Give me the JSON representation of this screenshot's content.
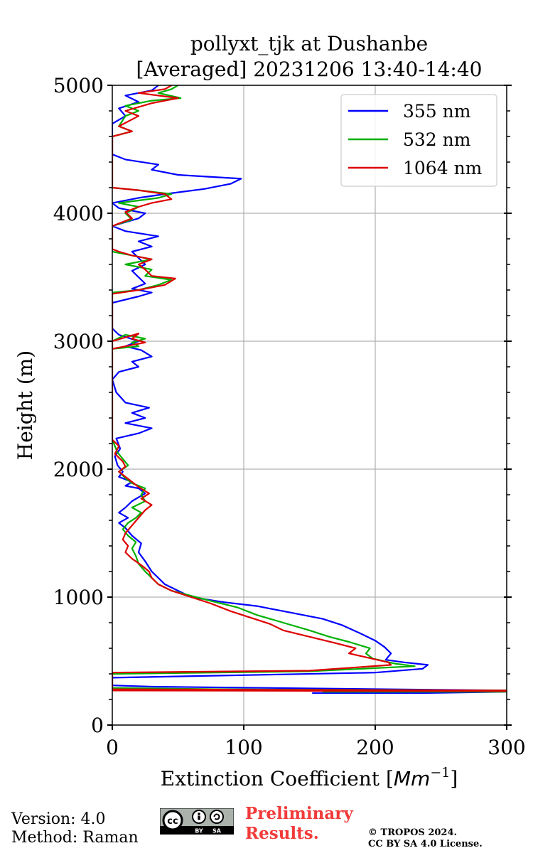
{
  "chart_data": {
    "type": "line",
    "title_line1": "pollyxt_tjk at Dushanbe",
    "title_line2": "[Averaged] 20231206 13:40-14:40",
    "xlabel": "Extinction Coefficient [",
    "xlabel_unit": "Mm",
    "xlabel_exp": "−1",
    "xlabel_end": "]",
    "ylabel": "Height (m)",
    "xlim": [
      0,
      300
    ],
    "ylim": [
      0,
      5000
    ],
    "xticks": [
      0,
      100,
      200,
      300
    ],
    "xtick_labels": [
      "0",
      "100",
      "200",
      "300"
    ],
    "yticks": [
      0,
      1000,
      2000,
      3000,
      4000,
      5000
    ],
    "ytick_labels": [
      "0",
      "1000",
      "2000",
      "3000",
      "4000",
      "5000"
    ],
    "grid": true,
    "legend_position": "top-right",
    "series": [
      {
        "name": "355 nm",
        "color": "#0000ff",
        "points": [
          [
            152,
            250
          ],
          [
            235,
            250
          ],
          [
            300,
            260
          ],
          [
            300,
            270
          ],
          [
            120,
            290
          ],
          [
            30,
            300
          ],
          [
            0,
            310
          ],
          [
            0,
            370
          ],
          [
            100,
            390
          ],
          [
            200,
            410
          ],
          [
            236,
            440
          ],
          [
            240,
            470
          ],
          [
            222,
            490
          ],
          [
            208,
            510
          ],
          [
            212,
            560
          ],
          [
            207,
            610
          ],
          [
            200,
            660
          ],
          [
            190,
            710
          ],
          [
            175,
            780
          ],
          [
            160,
            830
          ],
          [
            135,
            880
          ],
          [
            110,
            930
          ],
          [
            85,
            960
          ],
          [
            60,
            1000
          ],
          [
            50,
            1050
          ],
          [
            40,
            1100
          ],
          [
            35,
            1150
          ],
          [
            30,
            1200
          ],
          [
            25,
            1280
          ],
          [
            20,
            1350
          ],
          [
            22,
            1420
          ],
          [
            15,
            1480
          ],
          [
            10,
            1540
          ],
          [
            5,
            1580
          ],
          [
            12,
            1620
          ],
          [
            5,
            1660
          ],
          [
            10,
            1700
          ],
          [
            15,
            1750
          ],
          [
            20,
            1780
          ],
          [
            25,
            1810
          ],
          [
            20,
            1850
          ],
          [
            10,
            1870
          ],
          [
            15,
            1900
          ],
          [
            5,
            1940
          ],
          [
            8,
            1980
          ],
          [
            4,
            2030
          ],
          [
            2,
            2100
          ],
          [
            6,
            2160
          ],
          [
            3,
            2240
          ],
          [
            20,
            2280
          ],
          [
            30,
            2320
          ],
          [
            10,
            2360
          ],
          [
            25,
            2400
          ],
          [
            15,
            2440
          ],
          [
            28,
            2480
          ],
          [
            10,
            2520
          ],
          [
            3,
            2600
          ],
          [
            0,
            2700
          ],
          [
            5,
            2760
          ],
          [
            20,
            2800
          ],
          [
            15,
            2840
          ],
          [
            30,
            2880
          ],
          [
            22,
            2930
          ],
          [
            10,
            2960
          ],
          [
            20,
            3000
          ],
          [
            5,
            3050
          ],
          [
            0,
            3100
          ],
          [
            0,
            3300
          ],
          [
            20,
            3350
          ],
          [
            30,
            3380
          ],
          [
            15,
            3410
          ],
          [
            25,
            3450
          ],
          [
            20,
            3500
          ],
          [
            15,
            3550
          ],
          [
            25,
            3600
          ],
          [
            20,
            3650
          ],
          [
            15,
            3700
          ],
          [
            30,
            3740
          ],
          [
            20,
            3780
          ],
          [
            35,
            3820
          ],
          [
            10,
            3860
          ],
          [
            0,
            3900
          ],
          [
            20,
            3960
          ],
          [
            25,
            4000
          ],
          [
            5,
            4040
          ],
          [
            0,
            4080
          ],
          [
            20,
            4120
          ],
          [
            40,
            4150
          ],
          [
            70,
            4190
          ],
          [
            90,
            4230
          ],
          [
            98,
            4270
          ],
          [
            50,
            4300
          ],
          [
            30,
            4340
          ],
          [
            35,
            4380
          ],
          [
            10,
            4420
          ],
          [
            0,
            4460
          ],
          [
            0,
            4700
          ],
          [
            10,
            4760
          ],
          [
            5,
            4820
          ],
          [
            20,
            4870
          ],
          [
            10,
            4920
          ],
          [
            30,
            4960
          ],
          [
            35,
            5000
          ]
        ]
      },
      {
        "name": "532 nm",
        "color": "#00b000",
        "points": [
          [
            160,
            260
          ],
          [
            300,
            260
          ],
          [
            300,
            270
          ],
          [
            80,
            280
          ],
          [
            0,
            290
          ],
          [
            0,
            400
          ],
          [
            150,
            420
          ],
          [
            230,
            460
          ],
          [
            215,
            480
          ],
          [
            198,
            520
          ],
          [
            193,
            560
          ],
          [
            196,
            600
          ],
          [
            180,
            650
          ],
          [
            165,
            690
          ],
          [
            150,
            740
          ],
          [
            130,
            800
          ],
          [
            110,
            860
          ],
          [
            95,
            920
          ],
          [
            75,
            970
          ],
          [
            60,
            1010
          ],
          [
            45,
            1050
          ],
          [
            35,
            1100
          ],
          [
            30,
            1150
          ],
          [
            25,
            1200
          ],
          [
            20,
            1260
          ],
          [
            18,
            1320
          ],
          [
            15,
            1380
          ],
          [
            18,
            1430
          ],
          [
            12,
            1480
          ],
          [
            8,
            1530
          ],
          [
            12,
            1580
          ],
          [
            18,
            1620
          ],
          [
            22,
            1660
          ],
          [
            15,
            1700
          ],
          [
            25,
            1750
          ],
          [
            22,
            1800
          ],
          [
            25,
            1850
          ],
          [
            15,
            1890
          ],
          [
            10,
            1930
          ],
          [
            5,
            1980
          ],
          [
            12,
            2030
          ],
          [
            8,
            2080
          ],
          [
            4,
            2130
          ],
          [
            2,
            2180
          ],
          [
            0,
            2230
          ],
          [
            0,
            3000
          ],
          [
            10,
            3050
          ],
          [
            25,
            3020
          ],
          [
            15,
            2990
          ],
          [
            20,
            2960
          ],
          [
            0,
            2940
          ],
          [
            0,
            3380
          ],
          [
            20,
            3400
          ],
          [
            35,
            3440
          ],
          [
            45,
            3480
          ],
          [
            25,
            3510
          ],
          [
            30,
            3560
          ],
          [
            10,
            3600
          ],
          [
            30,
            3640
          ],
          [
            10,
            3680
          ],
          [
            0,
            3700
          ],
          [
            0,
            3900
          ],
          [
            15,
            3950
          ],
          [
            10,
            4000
          ],
          [
            20,
            4050
          ],
          [
            5,
            4080
          ],
          [
            35,
            4120
          ],
          [
            45,
            4150
          ],
          [
            20,
            4180
          ],
          [
            0,
            4200
          ],
          [
            0,
            4600
          ],
          [
            15,
            4640
          ],
          [
            5,
            4680
          ],
          [
            10,
            4760
          ],
          [
            20,
            4800
          ],
          [
            10,
            4840
          ],
          [
            30,
            4880
          ],
          [
            52,
            4900
          ],
          [
            35,
            4940
          ],
          [
            45,
            4970
          ],
          [
            50,
            5000
          ]
        ]
      },
      {
        "name": "1064 nm",
        "color": "#dd0000",
        "points": [
          [
            0,
            270
          ],
          [
            300,
            265
          ],
          [
            300,
            270
          ],
          [
            0,
            280
          ],
          [
            0,
            410
          ],
          [
            150,
            425
          ],
          [
            212,
            470
          ],
          [
            210,
            490
          ],
          [
            180,
            560
          ],
          [
            185,
            600
          ],
          [
            170,
            640
          ],
          [
            150,
            690
          ],
          [
            130,
            740
          ],
          [
            120,
            790
          ],
          [
            105,
            840
          ],
          [
            90,
            890
          ],
          [
            75,
            950
          ],
          [
            60,
            1000
          ],
          [
            45,
            1050
          ],
          [
            35,
            1100
          ],
          [
            30,
            1150
          ],
          [
            28,
            1200
          ],
          [
            22,
            1250
          ],
          [
            15,
            1300
          ],
          [
            10,
            1350
          ],
          [
            12,
            1400
          ],
          [
            8,
            1450
          ],
          [
            10,
            1500
          ],
          [
            15,
            1560
          ],
          [
            20,
            1620
          ],
          [
            25,
            1680
          ],
          [
            30,
            1720
          ],
          [
            22,
            1770
          ],
          [
            28,
            1810
          ],
          [
            20,
            1860
          ],
          [
            15,
            1900
          ],
          [
            10,
            1940
          ],
          [
            5,
            1980
          ],
          [
            10,
            2020
          ],
          [
            8,
            2060
          ],
          [
            2,
            2120
          ],
          [
            5,
            2180
          ],
          [
            0,
            2230
          ],
          [
            0,
            3000
          ],
          [
            20,
            3060
          ],
          [
            15,
            3020
          ],
          [
            25,
            2990
          ],
          [
            10,
            2960
          ],
          [
            0,
            2940
          ],
          [
            0,
            3370
          ],
          [
            20,
            3400
          ],
          [
            40,
            3440
          ],
          [
            48,
            3490
          ],
          [
            30,
            3510
          ],
          [
            25,
            3560
          ],
          [
            20,
            3600
          ],
          [
            30,
            3640
          ],
          [
            15,
            3670
          ],
          [
            5,
            3700
          ],
          [
            0,
            3720
          ],
          [
            0,
            3900
          ],
          [
            15,
            3960
          ],
          [
            10,
            4010
          ],
          [
            20,
            4050
          ],
          [
            30,
            4080
          ],
          [
            45,
            4110
          ],
          [
            40,
            4150
          ],
          [
            20,
            4180
          ],
          [
            0,
            4200
          ],
          [
            0,
            4600
          ],
          [
            15,
            4640
          ],
          [
            5,
            4680
          ],
          [
            20,
            4760
          ],
          [
            10,
            4800
          ],
          [
            30,
            4860
          ],
          [
            50,
            4900
          ],
          [
            20,
            4940
          ],
          [
            40,
            4970
          ],
          [
            45,
            5000
          ]
        ]
      }
    ]
  },
  "footer": {
    "version": "Version: 4.0",
    "method": "Method: Raman",
    "preliminary_line1": "Preliminary",
    "preliminary_line2": "Results.",
    "copyright_line1": "© TROPOS 2024.",
    "copyright_line2": "CC BY SA 4.0 License.",
    "cc_badge_text": "cc",
    "cc_by": "BY",
    "cc_sa": "SA"
  }
}
